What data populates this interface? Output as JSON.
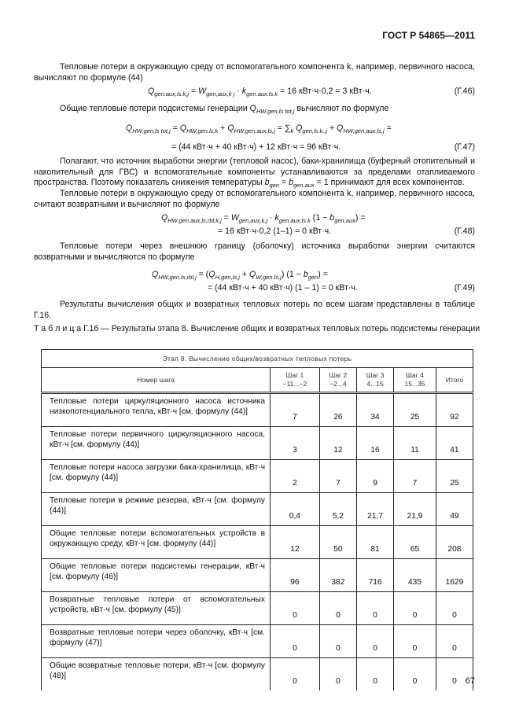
{
  "header": "ГОСТ Р 54865—2011",
  "p1": "Тепловые потери в окружающую среду от вспомогательного компонента k, например, первичного насоса, вычисляют по формуле (44)",
  "f46": {
    "text": " = 16 кВт·ч·0,2 = 3 кВт·ч.",
    "num": "(Г.46)"
  },
  "p2": "Общие тепловые потери подсистемы генерации Q",
  "p2b": " вычисляют по формуле",
  "f47": {
    "line2": "= (44 кВт·ч + 40 кВт·ч) + 12 кВт·ч = 96 кВт·ч.",
    "num": "(Г.47)"
  },
  "p3": "Полагают, что источник выработки энергии (тепловой насос), баки-хранилища (буферный отопительный и накопительный для ГВС) и вспомогательные компоненты устанавливаются за пределами отапливаемого пространства. Поэтому показатель снижения температуры",
  "p3b": "= 1 принимают для всех компонентов.",
  "p4": "Тепловые потери в окружающую среду от вспомогательного компонента k, например, первичного насоса, считают возвратными и вычисляют по формуле",
  "f48": {
    "line2": "= 16 кВт·ч·0,2 (1–1) = 0 кВт·ч.",
    "num": "(Г.48)"
  },
  "p5": "Тепловые потери через внешнюю границу (оболочку) источника выработки энергии считаются возвратными и вычисляются по формуле",
  "f49": {
    "line2": "= (44 кВт·ч + 40 кВт·ч) (1 – 1) = 0 кВт·ч.",
    "num": "(Г.49)"
  },
  "p6": "Результаты вычисления общих и возвратных тепловых потерь по всем шагам представлены в таблице Г.16.",
  "caption_label": "Т а б л и ц а  Г.16",
  "caption": " — Результаты этапа 8. Вычисление общих и возвратных тепловых потерь подсистемы генерации",
  "table": {
    "title": "Этап 8. Вычисление общих/возвратных тепловых потерь",
    "headers": [
      "Номер шага",
      "Шаг 1\n−11...−2",
      "Шаг 2\n−2...4",
      "Шаг 3\n4...15",
      "Шаг 4\n15...35",
      "Итого"
    ],
    "rows": [
      {
        "label": "Тепловые потери циркуляционного насоса источника низкопотенциального тепла, кВт·ч [см. формулу (44)]",
        "values": [
          "7",
          "26",
          "34",
          "25",
          "92"
        ]
      },
      {
        "label": "Тепловые потери первичного циркуляционного насоса, кВт·ч [см. формулу (44)]",
        "values": [
          "3",
          "12",
          "16",
          "11",
          "41"
        ]
      },
      {
        "label": "Тепловые потери насоса загрузки бака-хранилища, кВт·ч [см. формулу (44)]",
        "values": [
          "2",
          "7",
          "9",
          "7",
          "25"
        ]
      },
      {
        "label": "Тепловые потери в режиме резерва, кВт·ч [см. формулу (44)]",
        "values": [
          "0,4",
          "5,2",
          "21,7",
          "21,9",
          "49"
        ]
      },
      {
        "label": "Общие тепловые потери вспомогательных устройств в окружающую среду, кВт·ч [см. формулу (44)]",
        "values": [
          "12",
          "50",
          "81",
          "65",
          "208"
        ]
      },
      {
        "label": "Общие тепловые потери подсистемы генерации, кВт·ч [см. формулу (46)]",
        "values": [
          "96",
          "382",
          "716",
          "435",
          "1629"
        ]
      },
      {
        "label": "Возвратные тепловые потери от вспомогательных устройств, кВт·ч [см. формулу (45)]",
        "values": [
          "0",
          "0",
          "0",
          "0",
          "0"
        ]
      },
      {
        "label": "Возвратные тепловые потери через оболочку, кВт·ч [см. формулу (47)]",
        "values": [
          "0",
          "0",
          "0",
          "0",
          "0"
        ]
      },
      {
        "label": "Общие возвратные тепловые потери, кВт·ч [см. формулу (48)]",
        "values": [
          "0",
          "0",
          "0",
          "0",
          "0"
        ]
      }
    ]
  },
  "page_number": "67"
}
